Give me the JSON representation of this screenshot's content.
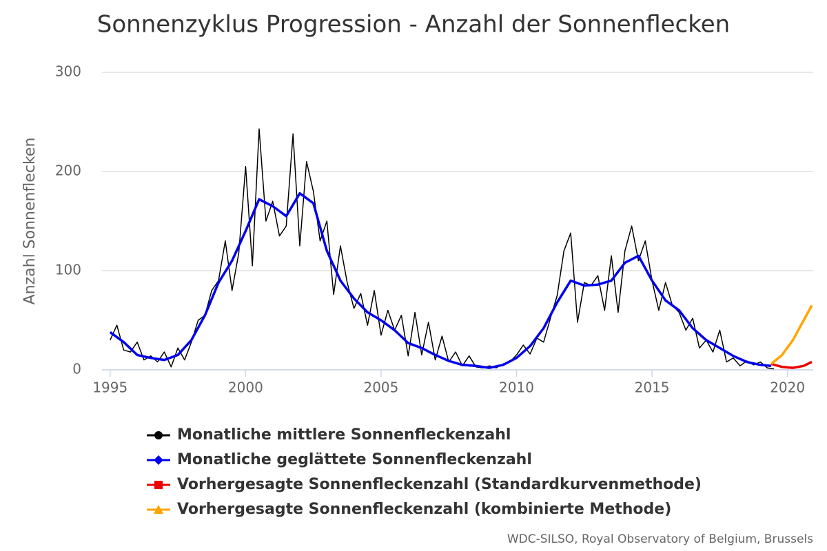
{
  "chart_data": {
    "type": "line",
    "title": "Sonnenzyklus Progression - Anzahl der Sonnenflecken",
    "y_label": "Anzahl Sonnenflecken",
    "credit": "WDC-SILSO, Royal Observatory of Belgium, Brussels",
    "xlim": [
      1994.7,
      2020.95
    ],
    "xticks": [
      1995,
      2000,
      2005,
      2010,
      2015,
      2020
    ],
    "ylim": [
      0,
      300
    ],
    "yticks": [
      0,
      100,
      200,
      300
    ],
    "grid": true,
    "series": [
      {
        "name": "Monatliche mittlere Sonnenfleckenzahl",
        "color": "#000000",
        "marker": "circle",
        "line_width": 1.5,
        "legend_marker_only": true,
        "x": [
          1995.0,
          1995.25,
          1995.5,
          1995.75,
          1996.0,
          1996.25,
          1996.5,
          1996.75,
          1997.0,
          1997.25,
          1997.5,
          1997.75,
          1998.0,
          1998.25,
          1998.5,
          1998.75,
          1999.0,
          1999.25,
          1999.5,
          1999.75,
          2000.0,
          2000.25,
          2000.5,
          2000.75,
          2001.0,
          2001.25,
          2001.5,
          2001.75,
          2002.0,
          2002.25,
          2002.5,
          2002.75,
          2003.0,
          2003.25,
          2003.5,
          2003.75,
          2004.0,
          2004.25,
          2004.5,
          2004.75,
          2005.0,
          2005.25,
          2005.5,
          2005.75,
          2006.0,
          2006.25,
          2006.5,
          2006.75,
          2007.0,
          2007.25,
          2007.5,
          2007.75,
          2008.0,
          2008.25,
          2008.5,
          2008.75,
          2009.0,
          2009.25,
          2009.5,
          2009.75,
          2010.0,
          2010.25,
          2010.5,
          2010.75,
          2011.0,
          2011.25,
          2011.5,
          2011.75,
          2012.0,
          2012.25,
          2012.5,
          2012.75,
          2013.0,
          2013.25,
          2013.5,
          2013.75,
          2014.0,
          2014.25,
          2014.5,
          2014.75,
          2015.0,
          2015.25,
          2015.5,
          2015.75,
          2016.0,
          2016.25,
          2016.5,
          2016.75,
          2017.0,
          2017.25,
          2017.5,
          2017.75,
          2018.0,
          2018.25,
          2018.5,
          2018.75,
          2019.0,
          2019.25,
          2019.5
        ],
        "values": [
          30,
          45,
          20,
          18,
          28,
          10,
          14,
          8,
          18,
          3,
          22,
          10,
          28,
          50,
          55,
          80,
          90,
          130,
          80,
          118,
          205,
          105,
          243,
          150,
          170,
          135,
          145,
          238,
          125,
          210,
          180,
          130,
          150,
          76,
          125,
          88,
          62,
          77,
          45,
          80,
          35,
          60,
          40,
          55,
          14,
          58,
          15,
          48,
          10,
          34,
          8,
          18,
          4,
          14,
          3,
          2,
          4,
          2,
          6,
          8,
          15,
          25,
          16,
          32,
          28,
          52,
          75,
          120,
          138,
          48,
          88,
          85,
          95,
          60,
          115,
          58,
          120,
          145,
          110,
          130,
          90,
          60,
          88,
          65,
          58,
          40,
          52,
          22,
          30,
          18,
          40,
          8,
          12,
          4,
          9,
          5,
          8,
          2,
          1
        ]
      },
      {
        "name": "Monatliche geglättete Sonnenfleckenzahl",
        "color": "#0000ee",
        "marker": "diamond",
        "line_width": 3.5,
        "x": [
          1995.0,
          1995.5,
          1996.0,
          1996.5,
          1997.0,
          1997.5,
          1998.0,
          1998.5,
          1999.0,
          1999.5,
          2000.0,
          2000.5,
          2001.0,
          2001.5,
          2002.0,
          2002.5,
          2003.0,
          2003.5,
          2004.0,
          2004.5,
          2005.0,
          2005.5,
          2006.0,
          2006.5,
          2007.0,
          2007.5,
          2008.0,
          2008.5,
          2009.0,
          2009.5,
          2010.0,
          2010.5,
          2011.0,
          2011.5,
          2012.0,
          2012.5,
          2013.0,
          2013.5,
          2014.0,
          2014.5,
          2015.0,
          2015.5,
          2016.0,
          2016.5,
          2017.0,
          2017.5,
          2018.0,
          2018.5,
          2019.0,
          2019.4
        ],
        "values": [
          38,
          28,
          15,
          12,
          10,
          15,
          30,
          55,
          88,
          110,
          140,
          172,
          165,
          155,
          178,
          168,
          120,
          90,
          72,
          58,
          50,
          40,
          27,
          22,
          15,
          9,
          5,
          4,
          2,
          5,
          12,
          24,
          42,
          68,
          90,
          85,
          86,
          90,
          108,
          115,
          90,
          70,
          60,
          42,
          30,
          22,
          14,
          8,
          5,
          4
        ]
      },
      {
        "name": "Vorhergesagte Sonnenfleckenzahl (Standardkurvenmethode)",
        "color": "#ee0000",
        "marker": "square",
        "line_width": 3.5,
        "x": [
          2019.4,
          2019.8,
          2020.2,
          2020.6,
          2020.9
        ],
        "values": [
          6,
          3,
          2,
          4,
          8
        ]
      },
      {
        "name": "Vorhergesagte Sonnenfleckenzahl (kombinierte Methode)",
        "color": "#ffa500",
        "marker": "triangle",
        "line_width": 3.5,
        "x": [
          2019.4,
          2019.8,
          2020.2,
          2020.6,
          2020.9
        ],
        "values": [
          6,
          15,
          30,
          50,
          65
        ]
      }
    ]
  }
}
